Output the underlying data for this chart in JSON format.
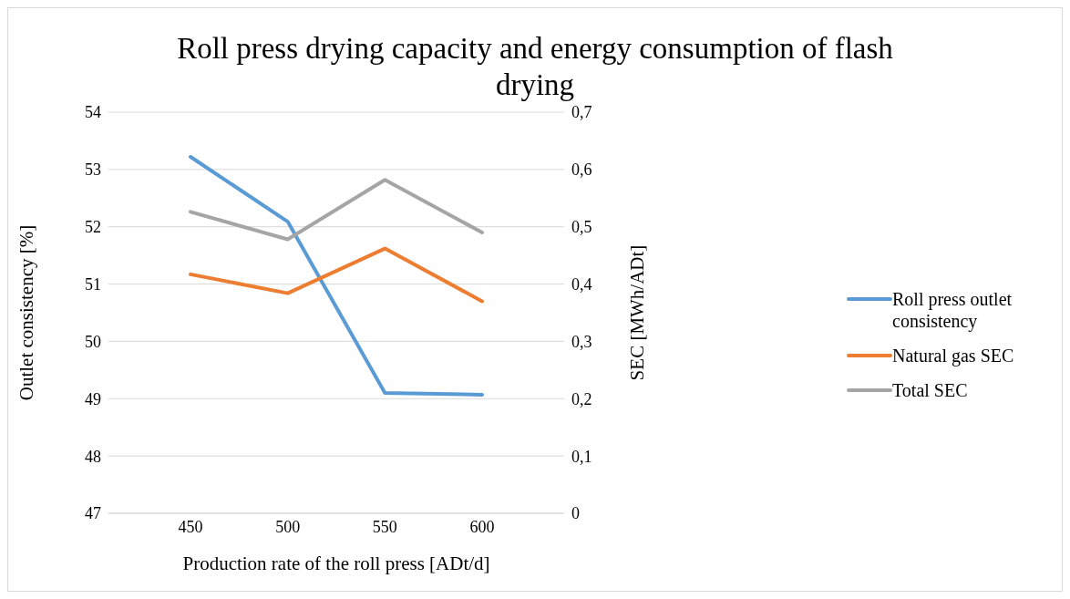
{
  "chart_data": {
    "type": "line",
    "title": "Roll press drying capacity and energy consumption of flash drying",
    "xlabel": "Production rate of the roll press [ADt/d]",
    "ylabel": "Outlet consistency [%]",
    "y2label": "SEC [MWh/ADt]",
    "categories": [
      "450",
      "500",
      "550",
      "600"
    ],
    "series": [
      {
        "name": "Roll press outlet consistency",
        "color": "#5b9bd5",
        "values": [
          53.22,
          52.09,
          49.1,
          49.07
        ]
      },
      {
        "name": "Natural gas SEC",
        "color": "#ed7d31",
        "axis": "y2",
        "values": [
          0.417,
          0.384,
          0.462,
          0.37
        ]
      },
      {
        "name": "Total SEC",
        "color": "#a5a5a5",
        "axis": "y2",
        "values": [
          0.526,
          0.478,
          0.582,
          0.49
        ]
      }
    ],
    "ylim": [
      47,
      54
    ],
    "yticks": [
      47,
      48,
      49,
      50,
      51,
      52,
      53,
      54
    ],
    "y2lim": [
      0,
      0.7
    ],
    "y2ticks": [
      {
        "value": 0,
        "label": "0"
      },
      {
        "value": 0.1,
        "label": "0,1"
      },
      {
        "value": 0.2,
        "label": "0,2"
      },
      {
        "value": 0.3,
        "label": "0,3"
      },
      {
        "value": 0.4,
        "label": "0,4"
      },
      {
        "value": 0.5,
        "label": "0,5"
      },
      {
        "value": 0.6,
        "label": "0,6"
      },
      {
        "value": 0.7,
        "label": "0,7"
      }
    ],
    "grid": "y",
    "legend": "right",
    "marker": "none",
    "line_style": "solid"
  }
}
